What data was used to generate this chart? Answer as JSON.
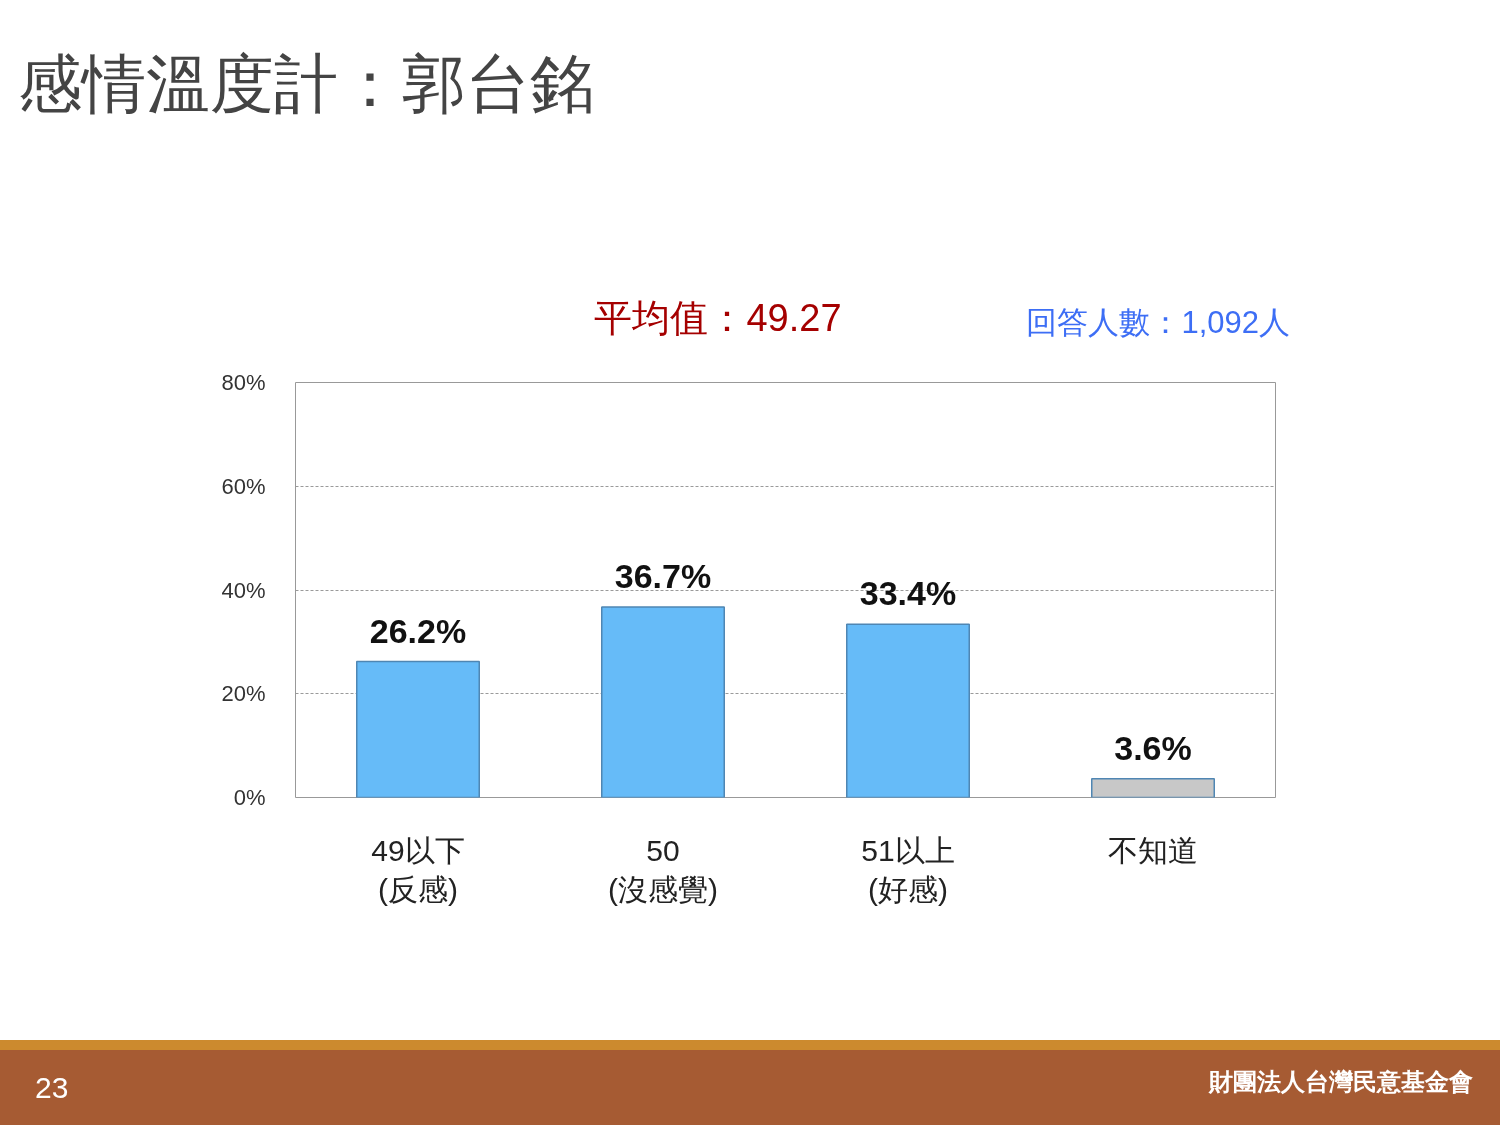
{
  "chart_data": {
    "type": "bar",
    "title": "感情溫度計：郭台銘",
    "categories": [
      "49以下\n(反感)",
      "50\n(沒感覺)",
      "51以上\n(好感)",
      "不知道"
    ],
    "values": [
      26.2,
      36.7,
      33.4,
      3.6
    ],
    "colors": [
      "#66bbf8",
      "#66bbf8",
      "#66bbf8",
      "#c8c8c8"
    ],
    "value_labels": [
      "26.2%",
      "36.7%",
      "33.4%",
      "3.6%"
    ],
    "ylim": [
      0,
      80
    ],
    "yticks": [
      {
        "value": 0,
        "label": "0%"
      },
      {
        "value": 20,
        "label": "20%"
      },
      {
        "value": 40,
        "label": "40%"
      },
      {
        "value": 60,
        "label": "60%"
      },
      {
        "value": 80,
        "label": "80%"
      }
    ],
    "grid": "y",
    "annotations": [
      "平均值：49.27",
      "回答人數：1,092人",
      "23",
      "財團法人台灣民意基金會"
    ]
  }
}
